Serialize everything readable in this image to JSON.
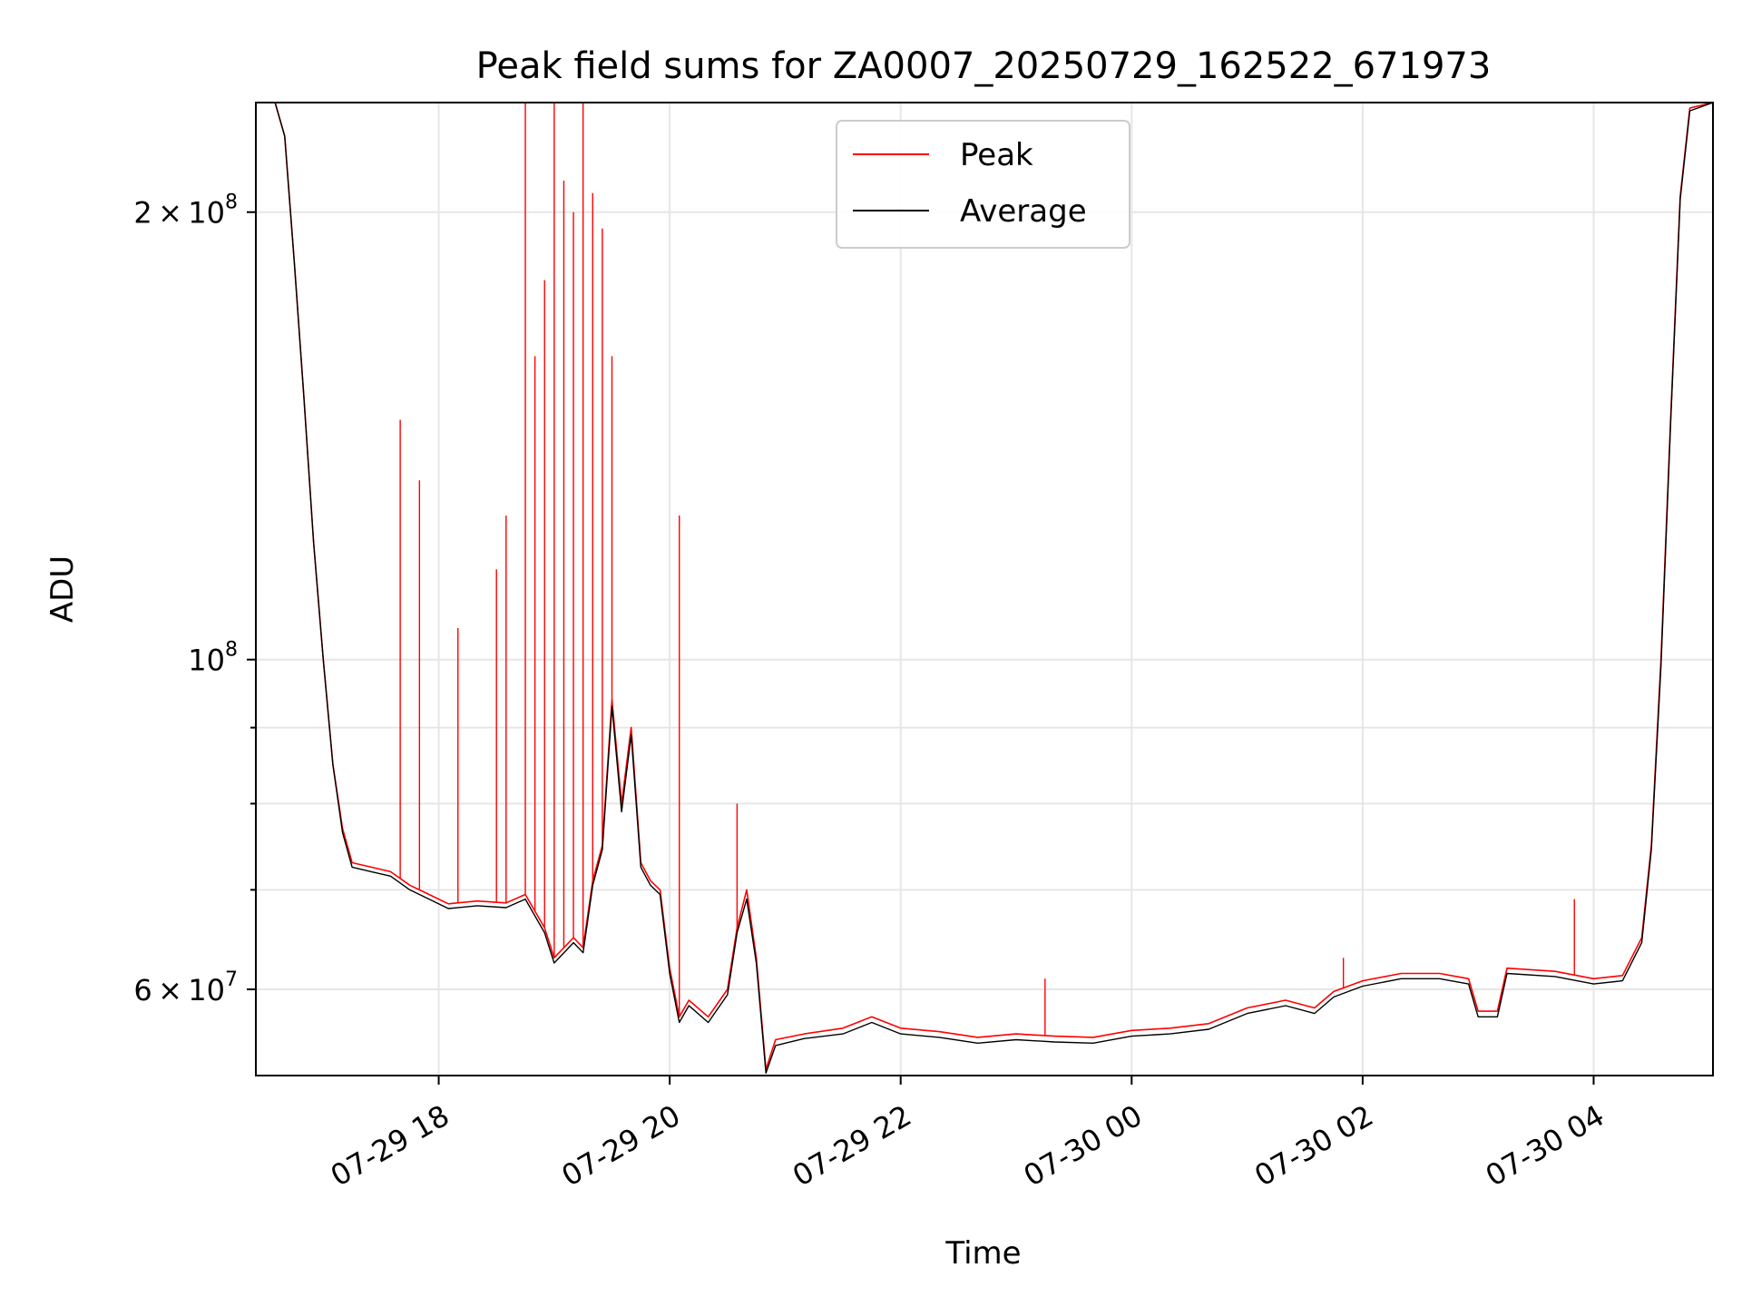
{
  "chart_data": {
    "type": "line",
    "title": "Peak field sums for ZA0007_20250729_162522_671973",
    "xlabel": "Time",
    "ylabel": "ADU",
    "yscale": "log",
    "ylim": [
      52500000,
      237000000
    ],
    "xlim": [
      "07-29 16:25",
      "07-30 05:02"
    ],
    "grid": true,
    "legend_position": "top-center",
    "x_ticks": [
      "07-29 18",
      "07-29 20",
      "07-29 22",
      "07-30 00",
      "07-30 02",
      "07-30 04"
    ],
    "x_tick_times": [
      "07-29 18:00",
      "07-29 20:00",
      "07-29 22:00",
      "07-30 00:00",
      "07-30 02:00",
      "07-30 04:00"
    ],
    "y_ticks": [
      {
        "value": 60000000,
        "mantissa": "6",
        "exponent": "7"
      },
      {
        "value": 100000000,
        "mantissa": "",
        "exponent": "8"
      },
      {
        "value": 200000000,
        "mantissa": "2",
        "exponent": "8"
      }
    ],
    "y_minor_ticks": [
      70000000,
      80000000,
      90000000
    ],
    "series": [
      {
        "name": "Peak",
        "color": "#ff0000",
        "points": [
          [
            "07-29 16:25",
            237000000
          ],
          [
            "07-29 16:35",
            237000000
          ],
          [
            "07-29 16:40",
            225000000
          ],
          [
            "07-29 16:45",
            185000000
          ],
          [
            "07-29 16:50",
            150000000
          ],
          [
            "07-29 16:55",
            120000000
          ],
          [
            "07-29 17:00",
            100000000
          ],
          [
            "07-29 17:05",
            85000000
          ],
          [
            "07-29 17:10",
            77000000
          ],
          [
            "07-29 17:15",
            73000000
          ],
          [
            "07-29 17:25",
            72500000
          ],
          [
            "07-29 17:35",
            72000000
          ],
          [
            "07-29 17:45",
            70500000
          ],
          [
            "07-29 17:55",
            69500000
          ],
          [
            "07-29 18:05",
            68500000
          ],
          [
            "07-29 18:20",
            68800000
          ],
          [
            "07-29 18:35",
            68600000
          ],
          [
            "07-29 18:45",
            69500000
          ],
          [
            "07-29 18:55",
            66000000
          ],
          [
            "07-29 19:00",
            63000000
          ],
          [
            "07-29 19:10",
            65000000
          ],
          [
            "07-29 19:15",
            64000000
          ],
          [
            "07-29 19:20",
            71000000
          ],
          [
            "07-29 19:25",
            75000000
          ],
          [
            "07-29 19:30",
            94000000
          ],
          [
            "07-29 19:35",
            80000000
          ],
          [
            "07-29 19:40",
            90000000
          ],
          [
            "07-29 19:45",
            73000000
          ],
          [
            "07-29 19:50",
            71000000
          ],
          [
            "07-29 19:55",
            70000000
          ],
          [
            "07-29 20:00",
            62000000
          ],
          [
            "07-29 20:05",
            57500000
          ],
          [
            "07-29 20:10",
            59000000
          ],
          [
            "07-29 20:20",
            57500000
          ],
          [
            "07-29 20:30",
            60000000
          ],
          [
            "07-29 20:35",
            66000000
          ],
          [
            "07-29 20:40",
            70000000
          ],
          [
            "07-29 20:45",
            63000000
          ],
          [
            "07-29 20:50",
            53000000
          ],
          [
            "07-29 20:55",
            55500000
          ],
          [
            "07-29 21:10",
            56000000
          ],
          [
            "07-29 21:30",
            56500000
          ],
          [
            "07-29 21:45",
            57500000
          ],
          [
            "07-29 22:00",
            56500000
          ],
          [
            "07-29 22:20",
            56200000
          ],
          [
            "07-29 22:40",
            55700000
          ],
          [
            "07-29 23:00",
            56000000
          ],
          [
            "07-29 23:20",
            55800000
          ],
          [
            "07-29 23:40",
            55700000
          ],
          [
            "07-30 00:00",
            56300000
          ],
          [
            "07-30 00:20",
            56500000
          ],
          [
            "07-30 00:40",
            56900000
          ],
          [
            "07-30 01:00",
            58300000
          ],
          [
            "07-30 01:20",
            59000000
          ],
          [
            "07-30 01:35",
            58300000
          ],
          [
            "07-30 01:45",
            59800000
          ],
          [
            "07-30 02:00",
            60800000
          ],
          [
            "07-30 02:20",
            61500000
          ],
          [
            "07-30 02:40",
            61500000
          ],
          [
            "07-30 02:55",
            61000000
          ],
          [
            "07-30 03:00",
            58000000
          ],
          [
            "07-30 03:10",
            58000000
          ],
          [
            "07-30 03:15",
            62000000
          ],
          [
            "07-30 03:40",
            61700000
          ],
          [
            "07-30 04:00",
            61000000
          ],
          [
            "07-30 04:15",
            61300000
          ],
          [
            "07-30 04:25",
            65000000
          ],
          [
            "07-30 04:30",
            75000000
          ],
          [
            "07-30 04:35",
            100000000
          ],
          [
            "07-30 04:40",
            145000000
          ],
          [
            "07-30 04:45",
            205000000
          ],
          [
            "07-30 04:50",
            235000000
          ],
          [
            "07-30 05:02",
            237000000
          ]
        ],
        "spikes": [
          [
            "07-29 17:40",
            145000000
          ],
          [
            "07-29 17:50",
            132000000
          ],
          [
            "07-29 18:10",
            105000000
          ],
          [
            "07-29 18:30",
            115000000
          ],
          [
            "07-29 18:35",
            125000000
          ],
          [
            "07-29 18:45",
            240000000
          ],
          [
            "07-29 18:50",
            160000000
          ],
          [
            "07-29 18:55",
            180000000
          ],
          [
            "07-29 19:00",
            240000000
          ],
          [
            "07-29 19:05",
            210000000
          ],
          [
            "07-29 19:10",
            200000000
          ],
          [
            "07-29 19:15",
            240000000
          ],
          [
            "07-29 19:20",
            206000000
          ],
          [
            "07-29 19:25",
            195000000
          ],
          [
            "07-29 19:30",
            160000000
          ],
          [
            "07-29 20:05",
            125000000
          ],
          [
            "07-29 20:35",
            80000000
          ],
          [
            "07-29 23:15",
            61000000
          ],
          [
            "07-30 01:50",
            63000000
          ],
          [
            "07-30 03:50",
            69000000
          ]
        ]
      },
      {
        "name": "Average",
        "color": "#000000",
        "points": [
          [
            "07-29 16:25",
            237000000
          ],
          [
            "07-29 16:35",
            237000000
          ],
          [
            "07-29 16:40",
            225000000
          ],
          [
            "07-29 16:45",
            185000000
          ],
          [
            "07-29 16:50",
            150000000
          ],
          [
            "07-29 16:55",
            120000000
          ],
          [
            "07-29 17:00",
            100000000
          ],
          [
            "07-29 17:05",
            85000000
          ],
          [
            "07-29 17:10",
            76500000
          ],
          [
            "07-29 17:15",
            72500000
          ],
          [
            "07-29 17:25",
            72000000
          ],
          [
            "07-29 17:35",
            71500000
          ],
          [
            "07-29 17:45",
            70000000
          ],
          [
            "07-29 17:55",
            69000000
          ],
          [
            "07-29 18:05",
            68000000
          ],
          [
            "07-29 18:20",
            68300000
          ],
          [
            "07-29 18:35",
            68100000
          ],
          [
            "07-29 18:45",
            69000000
          ],
          [
            "07-29 18:55",
            65500000
          ],
          [
            "07-29 19:00",
            62500000
          ],
          [
            "07-29 19:10",
            64500000
          ],
          [
            "07-29 19:15",
            63500000
          ],
          [
            "07-29 19:20",
            70500000
          ],
          [
            "07-29 19:25",
            74500000
          ],
          [
            "07-29 19:30",
            93000000
          ],
          [
            "07-29 19:35",
            79000000
          ],
          [
            "07-29 19:40",
            89000000
          ],
          [
            "07-29 19:45",
            72500000
          ],
          [
            "07-29 19:50",
            70500000
          ],
          [
            "07-29 19:55",
            69500000
          ],
          [
            "07-29 20:00",
            61500000
          ],
          [
            "07-29 20:05",
            57000000
          ],
          [
            "07-29 20:10",
            58500000
          ],
          [
            "07-29 20:20",
            57000000
          ],
          [
            "07-29 20:30",
            59500000
          ],
          [
            "07-29 20:35",
            65500000
          ],
          [
            "07-29 20:40",
            69000000
          ],
          [
            "07-29 20:45",
            62500000
          ],
          [
            "07-29 20:50",
            52700000
          ],
          [
            "07-29 20:55",
            55000000
          ],
          [
            "07-29 21:10",
            55600000
          ],
          [
            "07-29 21:30",
            56000000
          ],
          [
            "07-29 21:45",
            57000000
          ],
          [
            "07-29 22:00",
            56000000
          ],
          [
            "07-29 22:20",
            55700000
          ],
          [
            "07-29 22:40",
            55200000
          ],
          [
            "07-29 23:00",
            55500000
          ],
          [
            "07-29 23:20",
            55300000
          ],
          [
            "07-29 23:40",
            55200000
          ],
          [
            "07-30 00:00",
            55800000
          ],
          [
            "07-30 00:20",
            56000000
          ],
          [
            "07-30 00:40",
            56400000
          ],
          [
            "07-30 01:00",
            57800000
          ],
          [
            "07-30 01:20",
            58500000
          ],
          [
            "07-30 01:35",
            57800000
          ],
          [
            "07-30 01:45",
            59300000
          ],
          [
            "07-30 02:00",
            60300000
          ],
          [
            "07-30 02:20",
            61000000
          ],
          [
            "07-30 02:40",
            61000000
          ],
          [
            "07-30 02:55",
            60500000
          ],
          [
            "07-30 03:00",
            57500000
          ],
          [
            "07-30 03:10",
            57500000
          ],
          [
            "07-30 03:15",
            61500000
          ],
          [
            "07-30 03:40",
            61200000
          ],
          [
            "07-30 04:00",
            60500000
          ],
          [
            "07-30 04:15",
            60800000
          ],
          [
            "07-30 04:25",
            64500000
          ],
          [
            "07-30 04:30",
            74500000
          ],
          [
            "07-30 04:35",
            99000000
          ],
          [
            "07-30 04:40",
            144000000
          ],
          [
            "07-30 04:45",
            204000000
          ],
          [
            "07-30 04:50",
            234000000
          ],
          [
            "07-30 05:02",
            237000000
          ]
        ]
      }
    ]
  }
}
